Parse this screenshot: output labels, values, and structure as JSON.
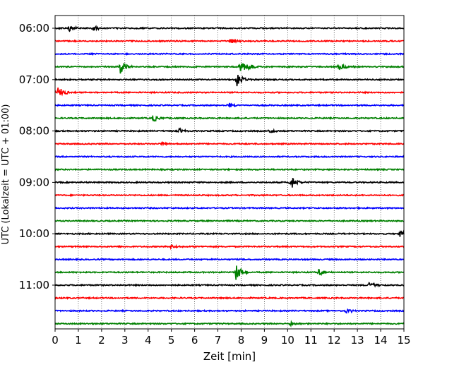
{
  "chart_data": {
    "type": "line",
    "title": "",
    "xlabel": "Zeit  [min]",
    "ylabel": "UTC (Lokalzeit = UTC + 01:00)",
    "xlim": [
      0,
      15
    ],
    "x_ticks": [
      "0",
      "1",
      "2",
      "3",
      "4",
      "5",
      "6",
      "7",
      "8",
      "9",
      "10",
      "11",
      "12",
      "13",
      "14",
      "15"
    ],
    "y_tick_labels": [
      "06:00",
      "07:00",
      "08:00",
      "09:00",
      "10:00",
      "11:00"
    ],
    "grid": "vertical dotted at each minute",
    "legend": "none",
    "trace_interval_min": 15,
    "trace_start": "06:00",
    "trace_colors": [
      "#000000",
      "#ff0000",
      "#0000ff",
      "#008000"
    ],
    "traces": [
      {
        "label": "06:00",
        "color": "#000000",
        "events": [
          {
            "t": 0.6,
            "amp": 0.45
          },
          {
            "t": 1.6,
            "amp": 0.35
          }
        ]
      },
      {
        "label": "06:15",
        "color": "#ff0000",
        "events": [
          {
            "t": 7.5,
            "amp": 0.4
          }
        ]
      },
      {
        "label": "06:30",
        "color": "#0000ff",
        "events": []
      },
      {
        "label": "06:45",
        "color": "#008000",
        "events": [
          {
            "t": 2.8,
            "amp": 0.75
          },
          {
            "t": 7.9,
            "amp": 0.8
          },
          {
            "t": 8.3,
            "amp": 0.4
          },
          {
            "t": 12.2,
            "amp": 0.45
          }
        ]
      },
      {
        "label": "07:00",
        "color": "#000000",
        "events": [
          {
            "t": 7.8,
            "amp": 0.8
          }
        ]
      },
      {
        "label": "07:15",
        "color": "#ff0000",
        "events": [
          {
            "t": 0.05,
            "amp": 0.9
          }
        ]
      },
      {
        "label": "07:30",
        "color": "#0000ff",
        "events": [
          {
            "t": 7.4,
            "amp": 0.3
          }
        ]
      },
      {
        "label": "07:45",
        "color": "#008000",
        "events": [
          {
            "t": 4.2,
            "amp": 0.4
          }
        ]
      },
      {
        "label": "08:00",
        "color": "#000000",
        "events": [
          {
            "t": 5.3,
            "amp": 0.3
          },
          {
            "t": 9.2,
            "amp": 0.35
          }
        ]
      },
      {
        "label": "08:15",
        "color": "#ff0000",
        "events": [
          {
            "t": 4.6,
            "amp": 0.3
          }
        ]
      },
      {
        "label": "08:30",
        "color": "#0000ff",
        "events": []
      },
      {
        "label": "08:45",
        "color": "#008000",
        "events": []
      },
      {
        "label": "09:00",
        "color": "#000000",
        "events": [
          {
            "t": 10.1,
            "amp": 0.75
          }
        ]
      },
      {
        "label": "09:15",
        "color": "#ff0000",
        "events": []
      },
      {
        "label": "09:30",
        "color": "#0000ff",
        "events": []
      },
      {
        "label": "09:45",
        "color": "#008000",
        "events": []
      },
      {
        "label": "10:00",
        "color": "#000000",
        "events": [
          {
            "t": 14.8,
            "amp": 0.4
          }
        ]
      },
      {
        "label": "10:15",
        "color": "#ff0000",
        "events": [
          {
            "t": 4.95,
            "amp": 0.3
          }
        ]
      },
      {
        "label": "10:30",
        "color": "#0000ff",
        "events": []
      },
      {
        "label": "10:45",
        "color": "#008000",
        "events": [
          {
            "t": 7.75,
            "amp": 1.0
          },
          {
            "t": 11.3,
            "amp": 0.45
          }
        ]
      },
      {
        "label": "11:00",
        "color": "#000000",
        "events": [
          {
            "t": 13.5,
            "amp": 0.45
          }
        ]
      },
      {
        "label": "11:15",
        "color": "#ff0000",
        "events": []
      },
      {
        "label": "11:30",
        "color": "#0000ff",
        "events": [
          {
            "t": 12.5,
            "amp": 0.3
          }
        ]
      },
      {
        "label": "11:45",
        "color": "#008000",
        "events": [
          {
            "t": 10.1,
            "amp": 0.25
          }
        ]
      }
    ]
  }
}
